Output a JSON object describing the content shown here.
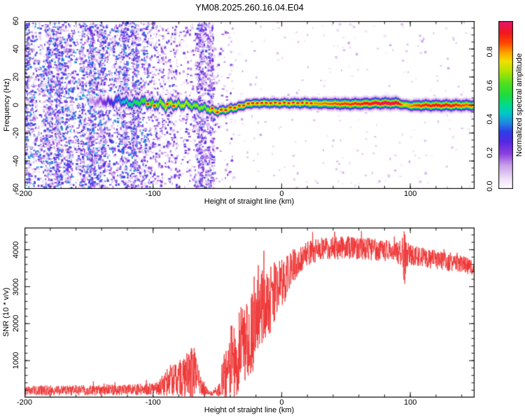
{
  "title": "YM08.2025.260.16.04.E04",
  "colors": {
    "frame": "#141414",
    "snr_line": "#ee3333",
    "background": "#ffffff"
  },
  "chart_data": [
    {
      "type": "heatmap",
      "panel": "spectrogram",
      "title": "YM08.2025.260.16.04.E04",
      "xlabel": "Height of straight line (km)",
      "ylabel": "Frequency (Hz)",
      "xlim": [
        -200,
        150
      ],
      "ylim": [
        -60,
        60
      ],
      "xticks": [
        -200,
        -100,
        0,
        100
      ],
      "yticks": [
        -60,
        -40,
        -20,
        0,
        20,
        40,
        60
      ],
      "xtick_minor": 20,
      "ytick_minor": 5,
      "grid": false,
      "colorbar": {
        "label": "Normalized spectral amplitude",
        "ticks": [
          "0.0",
          "0.2",
          "0.4",
          "0.6",
          "0.8"
        ],
        "tick_values": [
          0,
          0.2,
          0.4,
          0.6,
          0.8
        ],
        "range": [
          0,
          1
        ]
      },
      "colormap_stops": [
        [
          0.0,
          "#ffffff"
        ],
        [
          0.06,
          "#efe0f8"
        ],
        [
          0.14,
          "#c9a0e8"
        ],
        [
          0.21,
          "#8d3fe0"
        ],
        [
          0.28,
          "#5528e2"
        ],
        [
          0.34,
          "#2d3ee8"
        ],
        [
          0.4,
          "#1e90e0"
        ],
        [
          0.45,
          "#00c8c8"
        ],
        [
          0.5,
          "#00dc8c"
        ],
        [
          0.56,
          "#1edc3c"
        ],
        [
          0.63,
          "#50e01e"
        ],
        [
          0.7,
          "#b4e400"
        ],
        [
          0.76,
          "#f0e000"
        ],
        [
          0.81,
          "#ffa500"
        ],
        [
          0.87,
          "#ff4500"
        ],
        [
          0.93,
          "#f01820"
        ],
        [
          1.0,
          "#e8146e"
        ]
      ],
      "band_track": [
        [
          -150,
          2.5,
          0.12,
          4.0
        ],
        [
          -140,
          3.0,
          0.2,
          4.0
        ],
        [
          -133,
          2.0,
          0.3,
          3.5
        ],
        [
          -127,
          4.0,
          0.38,
          3.5
        ],
        [
          -121,
          2.0,
          0.45,
          3.5
        ],
        [
          -115,
          1.0,
          0.52,
          3.5
        ],
        [
          -110,
          3.0,
          0.58,
          3.5
        ],
        [
          -105,
          2.0,
          0.62,
          3.5
        ],
        [
          -100,
          0.5,
          0.6,
          3.5
        ],
        [
          -95,
          1.5,
          0.65,
          3.5
        ],
        [
          -90,
          -0.5,
          0.68,
          3.5
        ],
        [
          -85,
          1.0,
          0.72,
          3.5
        ],
        [
          -80,
          0.0,
          0.66,
          3.2
        ],
        [
          -75,
          1.0,
          0.7,
          3.2
        ],
        [
          -70,
          0.0,
          0.62,
          3.0
        ],
        [
          -65,
          -1.0,
          0.66,
          3.0
        ],
        [
          -60,
          -2.0,
          0.62,
          3.0
        ],
        [
          -56,
          -3.0,
          0.68,
          3.0
        ],
        [
          -52,
          -4.0,
          0.74,
          3.0
        ],
        [
          -48,
          -4.0,
          0.78,
          3.0
        ],
        [
          -44,
          -3.0,
          0.74,
          3.0
        ],
        [
          -40,
          -2.5,
          0.72,
          3.0
        ],
        [
          -36,
          -1.5,
          0.74,
          3.0
        ],
        [
          -32,
          -0.5,
          0.72,
          3.0
        ],
        [
          -28,
          0.5,
          0.74,
          3.0
        ],
        [
          -24,
          1.0,
          0.72,
          3.0
        ],
        [
          -20,
          1.5,
          0.74,
          3.0
        ],
        [
          0,
          1.5,
          0.74,
          3.0
        ],
        [
          20,
          1.5,
          0.76,
          3.2
        ],
        [
          30,
          1.2,
          0.78,
          3.2
        ],
        [
          45,
          1.0,
          0.82,
          3.4
        ],
        [
          60,
          1.0,
          0.85,
          3.4
        ],
        [
          72,
          1.5,
          0.9,
          3.4
        ],
        [
          80,
          1.5,
          0.95,
          3.4
        ],
        [
          90,
          1.5,
          0.93,
          3.4
        ],
        [
          95,
          0.5,
          0.72,
          3.0
        ],
        [
          100,
          -0.2,
          0.78,
          3.2
        ],
        [
          108,
          0.0,
          0.85,
          3.4
        ],
        [
          120,
          0.0,
          0.88,
          3.4
        ],
        [
          132,
          0.0,
          0.87,
          3.4
        ],
        [
          140,
          0.0,
          0.82,
          3.4
        ],
        [
          150,
          0.0,
          0.78,
          3.4
        ]
      ],
      "red_dot_km": [
        -104,
        -99,
        -89,
        -84,
        -54,
        -50,
        -47,
        -43.5,
        -40,
        -36.5,
        -33,
        -29.5,
        -26,
        -22.5,
        -19,
        -15.5,
        -12,
        -8.5,
        -5,
        -1.5,
        2,
        5.5,
        9,
        12.5,
        16,
        19.5,
        23
      ],
      "noise_regions": [
        {
          "x0": -200,
          "x1": -103,
          "density": 0.5,
          "imin": 0.06,
          "imax": 0.42,
          "streaky": true
        },
        {
          "x0": -103,
          "x1": -82,
          "density": 0.2,
          "imin": 0.05,
          "imax": 0.32,
          "streaky": false
        },
        {
          "x0": -82,
          "x1": -55,
          "density": 0.11,
          "imin": 0.05,
          "imax": 0.3,
          "streaky": false
        },
        {
          "x0": -67,
          "x1": -53,
          "density": 0.42,
          "imin": 0.06,
          "imax": 0.36,
          "streaky": true
        },
        {
          "x0": -55,
          "x1": -38,
          "density": 0.05,
          "imin": 0.05,
          "imax": 0.25,
          "streaky": false
        },
        {
          "x0": -38,
          "x1": 150,
          "density": 0.012,
          "imin": 0.04,
          "imax": 0.14,
          "streaky": false
        }
      ]
    },
    {
      "type": "line",
      "panel": "snr",
      "xlabel": "Height of straight line (km)",
      "ylabel": "SNR (10 * v/v)",
      "xlim": [
        -200,
        150
      ],
      "ylim": [
        0,
        4600
      ],
      "xticks": [
        -200,
        -100,
        0,
        100
      ],
      "yticks": [
        1000,
        2000,
        3000,
        4000
      ],
      "xtick_minor": 20,
      "ytick_minor": 200,
      "grid": false,
      "series": [
        {
          "name": "SNR",
          "color": "#ee3333",
          "envelope_points": [
            [
              -200,
              190,
              130
            ],
            [
              -185,
              195,
              135
            ],
            [
              -170,
              190,
              130
            ],
            [
              -155,
              200,
              140
            ],
            [
              -140,
              205,
              140
            ],
            [
              -125,
              215,
              145
            ],
            [
              -110,
              225,
              155
            ],
            [
              -100,
              250,
              170
            ],
            [
              -95,
              300,
              230
            ],
            [
              -90,
              420,
              380
            ],
            [
              -86,
              520,
              470
            ],
            [
              -82,
              460,
              420
            ],
            [
              -78,
              560,
              520
            ],
            [
              -73,
              650,
              640
            ],
            [
              -69,
              820,
              860
            ],
            [
              -66,
              600,
              600
            ],
            [
              -63,
              380,
              330
            ],
            [
              -60,
              220,
              170
            ],
            [
              -57,
              140,
              90
            ],
            [
              -54,
              120,
              70
            ],
            [
              -51,
              140,
              90
            ],
            [
              -48,
              260,
              260
            ],
            [
              -46,
              500,
              560
            ],
            [
              -44,
              700,
              800
            ],
            [
              -42,
              550,
              600
            ],
            [
              -40,
              900,
              950
            ],
            [
              -38,
              1100,
              1100
            ],
            [
              -36,
              900,
              900
            ],
            [
              -34,
              1300,
              1200
            ],
            [
              -32,
              1500,
              1150
            ],
            [
              -30,
              1350,
              1050
            ],
            [
              -28,
              1600,
              1150
            ],
            [
              -26,
              1800,
              1200
            ],
            [
              -24,
              1700,
              1100
            ],
            [
              -22,
              2000,
              1250
            ],
            [
              -20,
              2150,
              1250
            ],
            [
              -18,
              2300,
              1200
            ],
            [
              -16,
              2400,
              1150
            ],
            [
              -14,
              2500,
              1100
            ],
            [
              -12,
              2600,
              1050
            ],
            [
              -10,
              2700,
              1000
            ],
            [
              -8,
              2750,
              950
            ],
            [
              -6,
              2850,
              900
            ],
            [
              -4,
              2950,
              850
            ],
            [
              -2,
              3000,
              800
            ],
            [
              0,
              3100,
              750
            ],
            [
              3,
              3250,
              650
            ],
            [
              6,
              3400,
              550
            ],
            [
              9,
              3550,
              480
            ],
            [
              12,
              3650,
              420
            ],
            [
              15,
              3750,
              380
            ],
            [
              18,
              3850,
              340
            ],
            [
              21,
              3900,
              330
            ],
            [
              24,
              3950,
              320
            ],
            [
              28,
              4000,
              320
            ],
            [
              34,
              4020,
              320
            ],
            [
              40,
              4050,
              320
            ],
            [
              48,
              4060,
              320
            ],
            [
              56,
              4050,
              310
            ],
            [
              64,
              4030,
              300
            ],
            [
              72,
              4000,
              300
            ],
            [
              80,
              3980,
              290
            ],
            [
              88,
              3950,
              290
            ],
            [
              93,
              3900,
              380
            ],
            [
              95,
              3650,
              900
            ],
            [
              97,
              3800,
              420
            ],
            [
              100,
              3850,
              280
            ],
            [
              108,
              3800,
              270
            ],
            [
              116,
              3750,
              260
            ],
            [
              124,
              3700,
              250
            ],
            [
              132,
              3650,
              240
            ],
            [
              140,
              3600,
              230
            ],
            [
              146,
              3550,
              220
            ],
            [
              150,
              3520,
              210
            ]
          ]
        }
      ]
    }
  ]
}
